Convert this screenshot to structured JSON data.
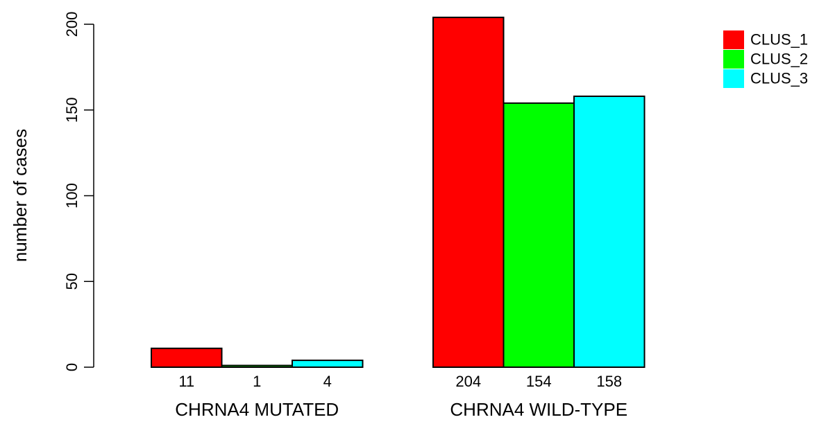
{
  "chart_data": {
    "type": "bar",
    "title": "",
    "xlabel": "",
    "ylabel": "number of cases",
    "ylim": [
      0,
      200
    ],
    "yticks": [
      0,
      50,
      100,
      150,
      200
    ],
    "grid": false,
    "legend_position": "top-right",
    "categories": [
      "CHRNA4 MUTATED",
      "CHRNA4 WILD-TYPE"
    ],
    "series": [
      {
        "name": "CLUS_1",
        "color": "#ff0000",
        "values": [
          11,
          204
        ]
      },
      {
        "name": "CLUS_2",
        "color": "#00ff00",
        "values": [
          1,
          154
        ]
      },
      {
        "name": "CLUS_3",
        "color": "#00ffff",
        "values": [
          4,
          158
        ]
      }
    ],
    "data_labels": [
      [
        "11",
        "1",
        "4"
      ],
      [
        "204",
        "154",
        "158"
      ]
    ]
  }
}
